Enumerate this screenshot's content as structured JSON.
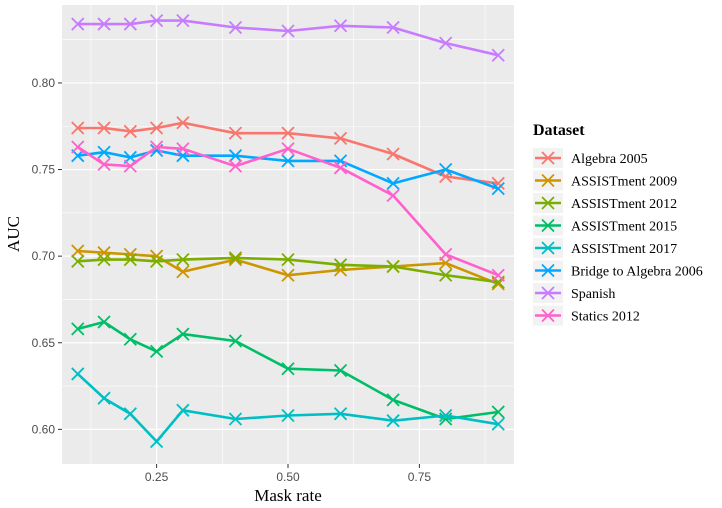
{
  "chart_data": {
    "type": "line",
    "xlabel": "Mask rate",
    "ylabel": "AUC",
    "xlim": [
      0.07,
      0.93
    ],
    "ylim": [
      0.58,
      0.845
    ],
    "xticks": [
      0.25,
      0.5,
      0.75
    ],
    "xtick_labels": [
      "0.25",
      "0.50",
      "0.75"
    ],
    "yticks": [
      0.6,
      0.65,
      0.7,
      0.75,
      0.8
    ],
    "ytick_labels": [
      "0.60",
      "0.65",
      "0.70",
      "0.75",
      "0.80"
    ],
    "grid": true,
    "legend_title": "Dataset",
    "legend_position": "right",
    "marker": "x",
    "x": [
      0.1,
      0.15,
      0.2,
      0.25,
      0.3,
      0.4,
      0.5,
      0.6,
      0.7,
      0.8,
      0.9
    ],
    "series": [
      {
        "name": "Algebra 2005",
        "color": "#F8766D",
        "values": [
          0.774,
          0.774,
          0.772,
          0.774,
          0.777,
          0.771,
          0.771,
          0.768,
          0.759,
          0.746,
          0.742
        ]
      },
      {
        "name": "ASSISTment 2009",
        "color": "#CD9600",
        "values": [
          0.703,
          0.702,
          0.701,
          0.7,
          0.691,
          0.698,
          0.689,
          0.692,
          0.694,
          0.696,
          0.684
        ]
      },
      {
        "name": "ASSISTment 2012",
        "color": "#7CAE00",
        "values": [
          0.697,
          0.698,
          0.698,
          0.697,
          0.698,
          0.699,
          0.698,
          0.695,
          0.694,
          0.689,
          0.685
        ]
      },
      {
        "name": "ASSISTment 2015",
        "color": "#00BE67",
        "values": [
          0.658,
          0.662,
          0.652,
          0.645,
          0.655,
          0.651,
          0.635,
          0.634,
          0.617,
          0.606,
          0.61
        ]
      },
      {
        "name": "ASSISTment 2017",
        "color": "#00BFC4",
        "values": [
          0.632,
          0.618,
          0.609,
          0.593,
          0.611,
          0.606,
          0.608,
          0.609,
          0.605,
          0.608,
          0.603
        ]
      },
      {
        "name": "Bridge to Algebra 2006",
        "color": "#00A9FF",
        "values": [
          0.758,
          0.76,
          0.757,
          0.761,
          0.758,
          0.758,
          0.755,
          0.755,
          0.742,
          0.75,
          0.739
        ]
      },
      {
        "name": "Spanish",
        "color": "#C77CFF",
        "values": [
          0.834,
          0.834,
          0.834,
          0.836,
          0.836,
          0.832,
          0.83,
          0.833,
          0.832,
          0.823,
          0.816
        ]
      },
      {
        "name": "Statics 2012",
        "color": "#FF61CC",
        "values": [
          0.763,
          0.753,
          0.752,
          0.763,
          0.762,
          0.752,
          0.762,
          0.751,
          0.735,
          0.701,
          0.689
        ]
      }
    ]
  }
}
